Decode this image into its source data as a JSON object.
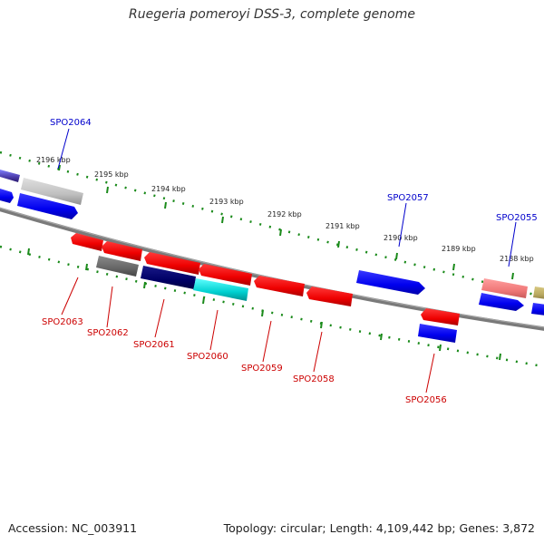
{
  "title": "Ruegeria pomeroyi DSS-3, complete genome",
  "footer": {
    "accession": "Accession: NC_003911",
    "summary": "Topology: circular; Length: 4,109,442 bp; Genes: 3,872"
  },
  "colors": {
    "forward_label": "#0000cc",
    "reverse_label": "#cc0000",
    "tick": "#1a8a1a",
    "backbone": "#7a7a7a"
  },
  "ticks": [
    {
      "label": "2196 kbp"
    },
    {
      "label": "2195 kbp"
    },
    {
      "label": "2194 kbp"
    },
    {
      "label": "2193 kbp"
    },
    {
      "label": "2192 kbp"
    },
    {
      "label": "2191 kbp"
    },
    {
      "label": "2190 kbp"
    },
    {
      "label": "2189 kbp"
    },
    {
      "label": "2188 kbp"
    }
  ],
  "forward_labels": [
    "SPO2064",
    "SPO2057",
    "SPO2055"
  ],
  "reverse_labels": [
    "SPO2063",
    "SPO2062",
    "SPO2061",
    "SPO2060",
    "SPO2059",
    "SPO2058",
    "SPO2056"
  ]
}
